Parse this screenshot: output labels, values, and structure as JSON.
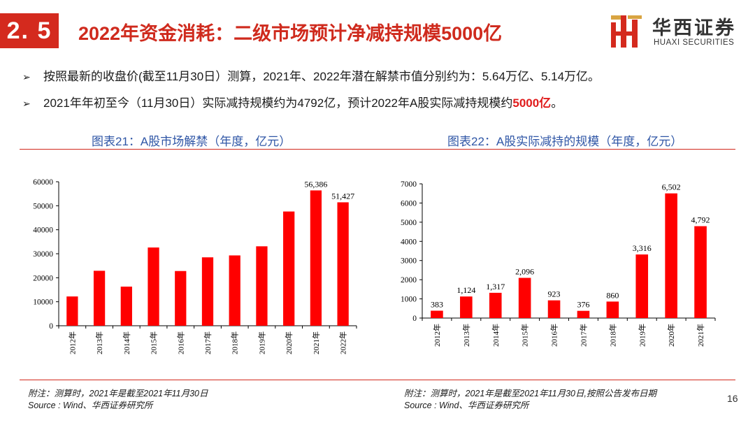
{
  "section_badge": "2. 5",
  "title": "2022年资金消耗：二级市场预计净减持规模5000亿",
  "logo": {
    "cn": "华西证券",
    "en": "HUAXI SECURITIES",
    "accent": "#d42a1e"
  },
  "bullets": [
    {
      "arrow": "➢",
      "text": "按照最新的收盘价(截至11月30日）测算，2021年、2022年潜在解禁市值分别约为：5.64万亿、5.14万亿。"
    },
    {
      "arrow": "➢",
      "text_before": "2021年年初至今（11月30日）实际减持规模约为4792亿，预计2022年A股实际减持规模约",
      "highlight": "5000亿",
      "text_after": "。"
    }
  ],
  "captions": {
    "chart1": "图表21：A股市场解禁（年度，亿元）",
    "chart2": "图表22：A股实际减持的规模（年度，亿元）"
  },
  "chart_data": [
    {
      "type": "bar",
      "categories": [
        "2012年",
        "2013年",
        "2014年",
        "2015年",
        "2016年",
        "2017年",
        "2018年",
        "2019年",
        "2020年",
        "2021年",
        "2022年"
      ],
      "values": [
        12200,
        22900,
        16300,
        32600,
        22800,
        28500,
        29300,
        33100,
        47600,
        56386,
        51427
      ],
      "data_labels": [
        "",
        "",
        "",
        "",
        "",
        "",
        "",
        "",
        "",
        "56,386",
        "51,427"
      ],
      "ylim": [
        0,
        60000
      ],
      "yticks": [
        0,
        10000,
        20000,
        30000,
        40000,
        50000,
        60000
      ],
      "color": "#ff0000",
      "grid": false
    },
    {
      "type": "bar",
      "categories": [
        "2012年",
        "2013年",
        "2014年",
        "2015年",
        "2016年",
        "2017年",
        "2018年",
        "2019年",
        "2020年",
        "2021年"
      ],
      "values": [
        383,
        1124,
        1317,
        2096,
        923,
        376,
        860,
        3316,
        6502,
        4792
      ],
      "data_labels": [
        "383",
        "1,124",
        "1,317",
        "2,096",
        "923",
        "376",
        "860",
        "3,316",
        "6,502",
        "4,792"
      ],
      "ylim": [
        0,
        7000
      ],
      "yticks": [
        0,
        1000,
        2000,
        3000,
        4000,
        5000,
        6000,
        7000
      ],
      "color": "#ff0000",
      "grid": false
    }
  ],
  "notes": {
    "left": [
      "附注：测算时，2021年是截至2021年11月30日",
      "Source : Wind、华西证券研究所"
    ],
    "right": [
      "附注：测算时，2021年是截至2021年11月30日,按照公告发布日期",
      "Source : Wind、华西证券研究所"
    ]
  },
  "page_number": "16"
}
